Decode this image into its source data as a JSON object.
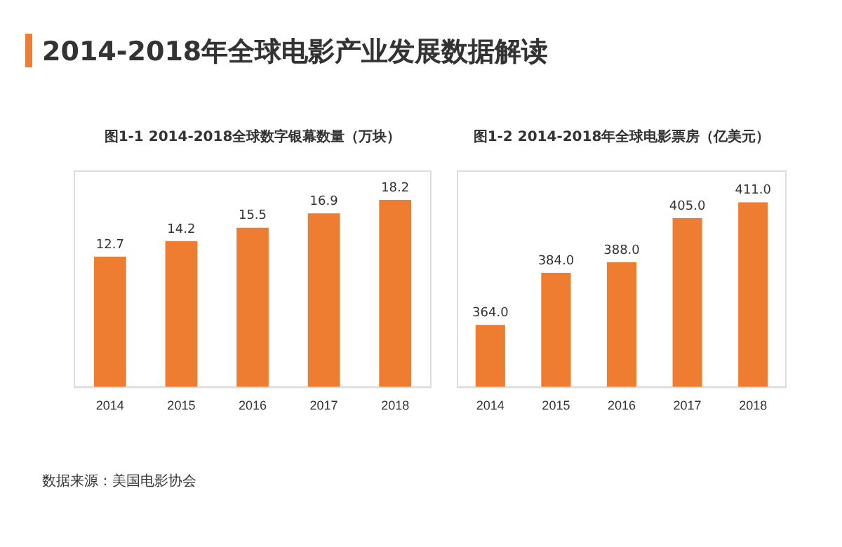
{
  "chart_data": [
    {
      "type": "bar",
      "title": "图1-1 2014-2018全球数字银幕数量（万块）",
      "categories": [
        "2014",
        "2015",
        "2016",
        "2017",
        "2018"
      ],
      "values": [
        12.7,
        14.2,
        15.5,
        16.9,
        18.2
      ],
      "color": "#ef7d31",
      "ylim": [
        0,
        21
      ],
      "data_labels": true,
      "tick_labels": "x",
      "annotations": [
        "2014-2018年全球电影产业发展数据解读",
        "数据来源：美国电影协会"
      ]
    },
    {
      "type": "bar",
      "title": "图1-2 2014-2018年全球电影票房（亿美元）",
      "categories": [
        "2014",
        "2015",
        "2016",
        "2017",
        "2018"
      ],
      "values": [
        364.0,
        384.0,
        388.0,
        405.0,
        411.0
      ],
      "value_labels": [
        "364.0",
        "384.0",
        "388.0",
        "405.0",
        "411.0"
      ],
      "color": "#ef7d31",
      "ylim": [
        340,
        423
      ],
      "tick_labels": "x"
    }
  ]
}
